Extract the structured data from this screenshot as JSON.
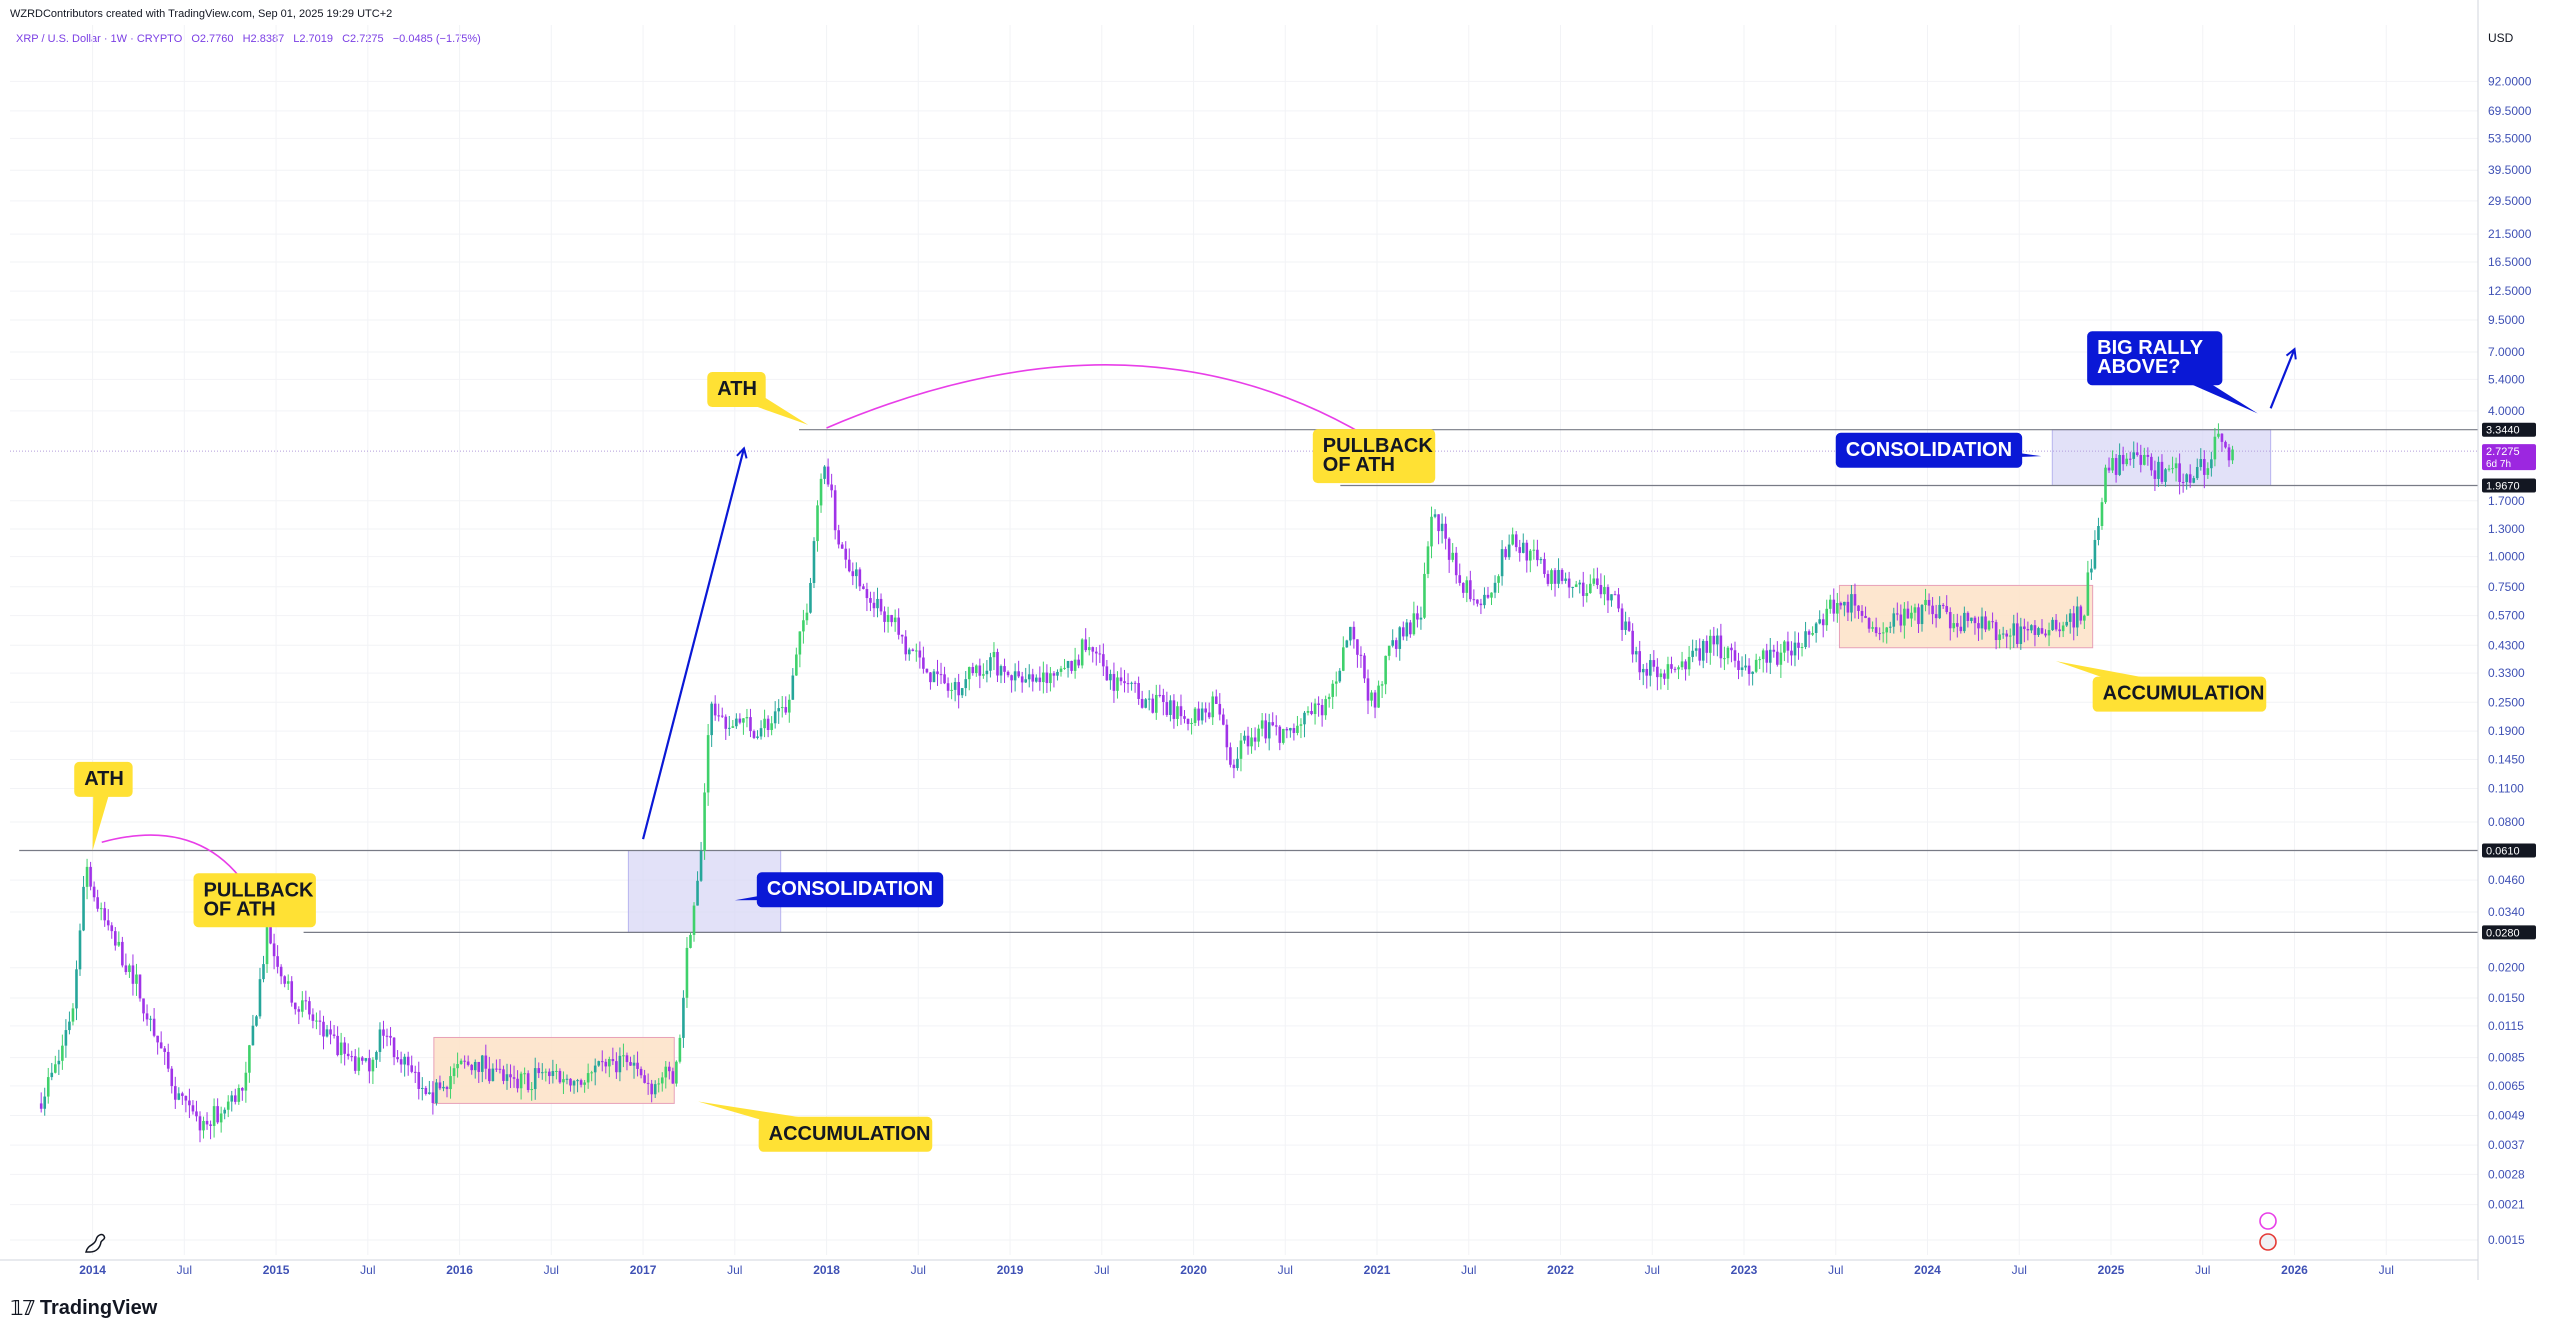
{
  "header": {
    "credit": "WZRDContributors created with TradingView.com, Sep 01, 2025 19:29 UTC+2"
  },
  "symbol": {
    "name": "XRP / U.S. Dollar · 1W · CRYPTO",
    "open": "O2.7760",
    "high": "H2.8387",
    "low": "L2.7019",
    "close": "C2.7275",
    "change": "−0.0485 (−1.75%)"
  },
  "brand": {
    "name": "TradingView",
    "icon": "tradingview-logo-icon"
  },
  "colors": {
    "up": "#26a69a",
    "up_bright": "#3fd16b",
    "down": "#a033e8",
    "annotation_yellow": "#ffe134",
    "annotation_blue": "#0a18d6",
    "arrow_magenta": "#e83ee8",
    "consolidation_box": "#d6d4f5",
    "accumulation_box": "#fde2c7",
    "axis_text": "#3f51b5"
  },
  "chart_data": {
    "type": "candlestick",
    "scale": "log",
    "currency": "USD",
    "y_ticks": [
      "92.0000",
      "69.5000",
      "53.5000",
      "39.5000",
      "29.5000",
      "21.5000",
      "16.5000",
      "12.5000",
      "9.5000",
      "7.0000",
      "5.4000",
      "4.0000",
      "1.7000",
      "1.3000",
      "1.0000",
      "0.7500",
      "0.5700",
      "0.4300",
      "0.3300",
      "0.2500",
      "0.1900",
      "0.1450",
      "0.1100",
      "0.0800",
      "0.0460",
      "0.0340",
      "0.0200",
      "0.0150",
      "0.0115",
      "0.0085",
      "0.0065",
      "0.0049",
      "0.0037",
      "0.0028",
      "0.0021",
      "0.0015"
    ],
    "y_ticks_values": [
      92,
      69.5,
      53.5,
      39.5,
      29.5,
      21.5,
      16.5,
      12.5,
      9.5,
      7,
      5.4,
      4,
      1.7,
      1.3,
      1.0,
      0.75,
      0.57,
      0.43,
      0.33,
      0.25,
      0.19,
      0.145,
      0.11,
      0.08,
      0.046,
      0.034,
      0.02,
      0.015,
      0.0115,
      0.0085,
      0.0065,
      0.0049,
      0.0037,
      0.0028,
      0.0021,
      0.0015
    ],
    "x_ticks": [
      "2014",
      "Jul",
      "2015",
      "Jul",
      "2016",
      "Jul",
      "2017",
      "Jul",
      "2018",
      "Jul",
      "2019",
      "Jul",
      "2020",
      "Jul",
      "2021",
      "Jul",
      "2022",
      "Jul",
      "2023",
      "Jul",
      "2024",
      "Jul",
      "2025",
      "Jul",
      "2026",
      "Jul"
    ],
    "x_ticks_years": [
      2014,
      2014.5,
      2015,
      2015.5,
      2016,
      2016.5,
      2017,
      2017.5,
      2018,
      2018.5,
      2019,
      2019.5,
      2020,
      2020.5,
      2021,
      2021.5,
      2022,
      2022.5,
      2023,
      2023.5,
      2024,
      2024.5,
      2025,
      2025.5,
      2026,
      2026.5
    ],
    "x_range": [
      2013.55,
      2027.0
    ],
    "y_range": [
      0.0013,
      130
    ],
    "price_labels": [
      {
        "text": "3.3440",
        "value": 3.344,
        "style": "dark"
      },
      {
        "text": "2.7275",
        "value": 2.7275,
        "style": "purple",
        "sub": "6d 7h"
      },
      {
        "text": "1.9670",
        "value": 1.967,
        "style": "dark"
      },
      {
        "text": "0.0610",
        "value": 0.061,
        "style": "dark"
      },
      {
        "text": "0.0280",
        "value": 0.028,
        "style": "dark"
      }
    ],
    "hlines": [
      {
        "value": 0.061,
        "from": 2013.6,
        "to": 2027.0
      },
      {
        "value": 0.028,
        "from": 2015.15,
        "to": 2027.0
      },
      {
        "value": 3.344,
        "from": 2017.85,
        "to": 2027.0
      },
      {
        "value": 1.967,
        "from": 2020.8,
        "to": 2027.0
      },
      {
        "value": 2.7275,
        "from": 2013.55,
        "to": 2027.0,
        "style": "current"
      }
    ],
    "boxes": [
      {
        "kind": "consolidation",
        "t0": 2016.92,
        "t1": 2017.75,
        "top": 0.061,
        "bottom": 0.028
      },
      {
        "kind": "consolidation",
        "t0": 2024.68,
        "t1": 2025.87,
        "top": 3.344,
        "bottom": 1.967
      },
      {
        "kind": "accumulation",
        "t0": 2015.86,
        "t1": 2017.17,
        "top": 0.0103,
        "bottom": 0.0055
      },
      {
        "kind": "accumulation",
        "t0": 2023.52,
        "t1": 2024.9,
        "top": 0.76,
        "bottom": 0.42
      }
    ],
    "annotations": [
      {
        "text": "ATH",
        "style": "yellow",
        "t": 2013.9,
        "value": 0.12,
        "pointer": {
          "t": 2014.0,
          "value": 0.061
        }
      },
      {
        "text": "PULLBACK\nOF ATH",
        "style": "yellow",
        "t": 2014.55,
        "value": 0.038,
        "pointer": null
      },
      {
        "text": "ACCUMULATION",
        "style": "yellow",
        "t": 2017.63,
        "value": 0.0041,
        "pointer": {
          "t": 2017.3,
          "value": 0.0056
        }
      },
      {
        "text": "CONSOLIDATION",
        "style": "blue",
        "t": 2017.62,
        "value": 0.042,
        "pointer": {
          "t": 2017.5,
          "value": 0.038
        }
      },
      {
        "text": "ATH",
        "style": "yellow",
        "t": 2017.35,
        "value": 4.9,
        "pointer": {
          "t": 2017.9,
          "value": 3.5
        }
      },
      {
        "text": "PULLBACK\nOF ATH",
        "style": "yellow",
        "t": 2020.65,
        "value": 2.6,
        "pointer": {
          "t": 2021.25,
          "value": 2.05
        }
      },
      {
        "text": "CONSOLIDATION",
        "style": "blue",
        "t": 2023.5,
        "value": 2.75,
        "pointer": {
          "t": 2024.62,
          "value": 2.6
        }
      },
      {
        "text": "ACCUMULATION",
        "style": "yellow",
        "t": 2024.9,
        "value": 0.27,
        "pointer": {
          "t": 2024.7,
          "value": 0.37
        }
      },
      {
        "text": "BIG RALLY\nABOVE?",
        "style": "blue",
        "t": 2024.87,
        "value": 6.6,
        "pointer": {
          "t": 2025.8,
          "value": 3.9
        }
      }
    ],
    "arrows": [
      {
        "kind": "curve",
        "color": "magenta",
        "from": {
          "t": 2014.05,
          "value": 0.066
        },
        "ctrl": {
          "t": 2014.7,
          "value": 0.09
        },
        "to": {
          "t": 2014.95,
          "value": 0.03
        }
      },
      {
        "kind": "curve",
        "color": "magenta",
        "from": {
          "t": 2018.0,
          "value": 3.4
        },
        "ctrl": {
          "t": 2019.9,
          "value": 14
        },
        "to": {
          "t": 2021.3,
          "value": 2.05
        }
      },
      {
        "kind": "straight",
        "color": "blue",
        "from": {
          "t": 2017.0,
          "value": 0.068
        },
        "to": {
          "t": 2017.55,
          "value": 2.8
        }
      },
      {
        "kind": "straight",
        "color": "blue",
        "from": {
          "t": 2025.87,
          "value": 4.1
        },
        "to": {
          "t": 2026.0,
          "value": 7.2
        }
      }
    ],
    "anchors": [
      {
        "t": 2013.72,
        "value": 0.0055
      },
      {
        "t": 2013.83,
        "value": 0.008
      },
      {
        "t": 2013.92,
        "value": 0.015
      },
      {
        "t": 2013.98,
        "value": 0.058
      },
      {
        "t": 2014.05,
        "value": 0.034
      },
      {
        "t": 2014.15,
        "value": 0.025
      },
      {
        "t": 2014.25,
        "value": 0.018
      },
      {
        "t": 2014.35,
        "value": 0.011
      },
      {
        "t": 2014.5,
        "value": 0.0055
      },
      {
        "t": 2014.6,
        "value": 0.0045
      },
      {
        "t": 2014.72,
        "value": 0.005
      },
      {
        "t": 2014.85,
        "value": 0.0065
      },
      {
        "t": 2014.97,
        "value": 0.028
      },
      {
        "t": 2015.1,
        "value": 0.016
      },
      {
        "t": 2015.3,
        "value": 0.01
      },
      {
        "t": 2015.5,
        "value": 0.0075
      },
      {
        "t": 2015.6,
        "value": 0.011
      },
      {
        "t": 2015.7,
        "value": 0.0085
      },
      {
        "t": 2015.85,
        "value": 0.0055
      },
      {
        "t": 2015.95,
        "value": 0.007
      },
      {
        "t": 2016.1,
        "value": 0.0085
      },
      {
        "t": 2016.3,
        "value": 0.0065
      },
      {
        "t": 2016.5,
        "value": 0.0075
      },
      {
        "t": 2016.7,
        "value": 0.0068
      },
      {
        "t": 2016.9,
        "value": 0.0085
      },
      {
        "t": 2017.05,
        "value": 0.0065
      },
      {
        "t": 2017.2,
        "value": 0.0075
      },
      {
        "t": 2017.27,
        "value": 0.028
      },
      {
        "t": 2017.33,
        "value": 0.05
      },
      {
        "t": 2017.38,
        "value": 0.24
      },
      {
        "t": 2017.5,
        "value": 0.2
      },
      {
        "t": 2017.65,
        "value": 0.2
      },
      {
        "t": 2017.8,
        "value": 0.22
      },
      {
        "t": 2017.92,
        "value": 0.7
      },
      {
        "t": 2018.0,
        "value": 2.8
      },
      {
        "t": 2018.08,
        "value": 1.2
      },
      {
        "t": 2018.2,
        "value": 0.8
      },
      {
        "t": 2018.4,
        "value": 0.5
      },
      {
        "t": 2018.55,
        "value": 0.35
      },
      {
        "t": 2018.7,
        "value": 0.28
      },
      {
        "t": 2018.9,
        "value": 0.38
      },
      {
        "t": 2019.1,
        "value": 0.3
      },
      {
        "t": 2019.3,
        "value": 0.32
      },
      {
        "t": 2019.45,
        "value": 0.45
      },
      {
        "t": 2019.6,
        "value": 0.3
      },
      {
        "t": 2019.8,
        "value": 0.25
      },
      {
        "t": 2020.0,
        "value": 0.21
      },
      {
        "t": 2020.15,
        "value": 0.25
      },
      {
        "t": 2020.22,
        "value": 0.14
      },
      {
        "t": 2020.35,
        "value": 0.19
      },
      {
        "t": 2020.55,
        "value": 0.19
      },
      {
        "t": 2020.75,
        "value": 0.25
      },
      {
        "t": 2020.88,
        "value": 0.52
      },
      {
        "t": 2021.0,
        "value": 0.23
      },
      {
        "t": 2021.1,
        "value": 0.45
      },
      {
        "t": 2021.25,
        "value": 0.55
      },
      {
        "t": 2021.33,
        "value": 1.6
      },
      {
        "t": 2021.45,
        "value": 0.85
      },
      {
        "t": 2021.6,
        "value": 0.65
      },
      {
        "t": 2021.75,
        "value": 1.2
      },
      {
        "t": 2021.95,
        "value": 0.85
      },
      {
        "t": 2022.1,
        "value": 0.75
      },
      {
        "t": 2022.3,
        "value": 0.72
      },
      {
        "t": 2022.45,
        "value": 0.35
      },
      {
        "t": 2022.65,
        "value": 0.33
      },
      {
        "t": 2022.85,
        "value": 0.45
      },
      {
        "t": 2023.0,
        "value": 0.35
      },
      {
        "t": 2023.2,
        "value": 0.4
      },
      {
        "t": 2023.4,
        "value": 0.5
      },
      {
        "t": 2023.55,
        "value": 0.7
      },
      {
        "t": 2023.75,
        "value": 0.5
      },
      {
        "t": 2024.0,
        "value": 0.6
      },
      {
        "t": 2024.2,
        "value": 0.55
      },
      {
        "t": 2024.4,
        "value": 0.5
      },
      {
        "t": 2024.55,
        "value": 0.47
      },
      {
        "t": 2024.7,
        "value": 0.55
      },
      {
        "t": 2024.8,
        "value": 0.55
      },
      {
        "t": 2024.87,
        "value": 0.6
      },
      {
        "t": 2024.93,
        "value": 1.2
      },
      {
        "t": 2025.0,
        "value": 2.4
      },
      {
        "t": 2025.15,
        "value": 2.5
      },
      {
        "t": 2025.3,
        "value": 2.2
      },
      {
        "t": 2025.45,
        "value": 2.2
      },
      {
        "t": 2025.55,
        "value": 2.5
      },
      {
        "t": 2025.6,
        "value": 3.3
      },
      {
        "t": 2025.67,
        "value": 2.75
      }
    ]
  }
}
